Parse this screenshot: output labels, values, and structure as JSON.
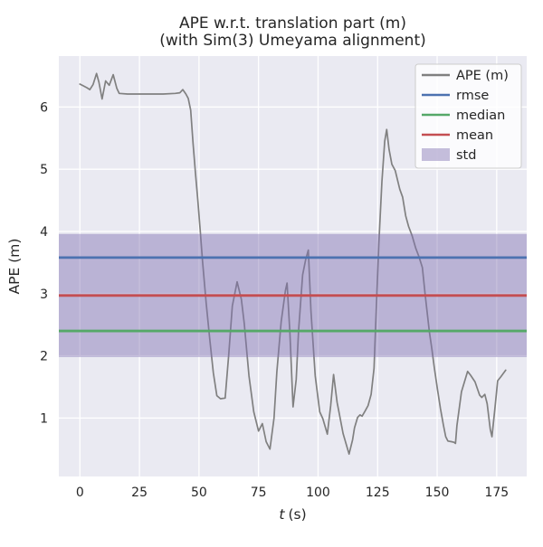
{
  "chart_data": {
    "type": "line",
    "title": "APE w.r.t. translation part (m)",
    "subtitle": "(with Sim(3) Umeyama alignment)",
    "xlabel": "t (s)",
    "xlabel_var": "t",
    "xlabel_unit": "(s)",
    "ylabel": "APE (m)",
    "xlim": [
      -8.85,
      187.6
    ],
    "ylim": [
      0.06,
      6.82
    ],
    "x_ticks": [
      0,
      25,
      50,
      75,
      100,
      125,
      150,
      175
    ],
    "y_ticks": [
      1,
      2,
      3,
      4,
      5,
      6
    ],
    "grid": true,
    "legend_position": "upper right",
    "stats": {
      "rmse": 3.58,
      "mean": 2.97,
      "median": 2.4,
      "std": 0.99,
      "std_band": [
        1.98,
        3.96
      ]
    },
    "series": [
      {
        "name": "APE (m)",
        "kind": "line",
        "color": "#808080",
        "width": 1.7,
        "points": [
          [
            0,
            6.37
          ],
          [
            1.5,
            6.34
          ],
          [
            3,
            6.31
          ],
          [
            4.2,
            6.28
          ],
          [
            5.5,
            6.36
          ],
          [
            7,
            6.54
          ],
          [
            8,
            6.4
          ],
          [
            9.3,
            6.13
          ],
          [
            10.8,
            6.42
          ],
          [
            12.3,
            6.35
          ],
          [
            14,
            6.52
          ],
          [
            15.5,
            6.3
          ],
          [
            16.5,
            6.22
          ],
          [
            20,
            6.21
          ],
          [
            25,
            6.21
          ],
          [
            30,
            6.21
          ],
          [
            35,
            6.21
          ],
          [
            40,
            6.22
          ],
          [
            42,
            6.23
          ],
          [
            43.2,
            6.28
          ],
          [
            44.5,
            6.21
          ],
          [
            45.5,
            6.14
          ],
          [
            46.5,
            5.95
          ],
          [
            47.5,
            5.42
          ],
          [
            48.5,
            4.95
          ],
          [
            49.5,
            4.5
          ],
          [
            50.5,
            4.02
          ],
          [
            51.5,
            3.52
          ],
          [
            53,
            2.85
          ],
          [
            54.5,
            2.28
          ],
          [
            56,
            1.73
          ],
          [
            57.5,
            1.36
          ],
          [
            59,
            1.31
          ],
          [
            61,
            1.32
          ],
          [
            62.5,
            2.03
          ],
          [
            64,
            2.8
          ],
          [
            66,
            3.19
          ],
          [
            67.8,
            2.91
          ],
          [
            69,
            2.52
          ],
          [
            71,
            1.68
          ],
          [
            73,
            1.1
          ],
          [
            75,
            0.79
          ],
          [
            76.6,
            0.91
          ],
          [
            78.2,
            0.62
          ],
          [
            79.8,
            0.5
          ],
          [
            81.5,
            1.0
          ],
          [
            82.7,
            1.74
          ],
          [
            84.5,
            2.55
          ],
          [
            86.3,
            3.05
          ],
          [
            87,
            3.17
          ],
          [
            88.2,
            2.35
          ],
          [
            89.5,
            1.18
          ],
          [
            90.8,
            1.62
          ],
          [
            91.8,
            2.4
          ],
          [
            93.5,
            3.3
          ],
          [
            94.8,
            3.55
          ],
          [
            95.9,
            3.7
          ],
          [
            97,
            2.72
          ],
          [
            98.8,
            1.68
          ],
          [
            100.7,
            1.1
          ],
          [
            102,
            0.99
          ],
          [
            103.9,
            0.74
          ],
          [
            105.3,
            1.2
          ],
          [
            106.5,
            1.7
          ],
          [
            108,
            1.25
          ],
          [
            108.9,
            1.07
          ],
          [
            110.5,
            0.75
          ],
          [
            113,
            0.42
          ],
          [
            114.5,
            0.65
          ],
          [
            115.3,
            0.84
          ],
          [
            116.6,
            1.01
          ],
          [
            117.6,
            1.05
          ],
          [
            118.5,
            1.03
          ],
          [
            119.7,
            1.11
          ],
          [
            121,
            1.2
          ],
          [
            122.3,
            1.38
          ],
          [
            123.5,
            1.8
          ],
          [
            124.5,
            2.8
          ],
          [
            125.5,
            3.8
          ],
          [
            126.8,
            4.8
          ],
          [
            128,
            5.45
          ],
          [
            128.8,
            5.64
          ],
          [
            129.8,
            5.32
          ],
          [
            131,
            5.08
          ],
          [
            132.4,
            4.98
          ],
          [
            134.3,
            4.68
          ],
          [
            135.5,
            4.55
          ],
          [
            136.8,
            4.25
          ],
          [
            138,
            4.08
          ],
          [
            139.5,
            3.93
          ],
          [
            141,
            3.73
          ],
          [
            142.3,
            3.6
          ],
          [
            143.8,
            3.42
          ],
          [
            145,
            2.97
          ],
          [
            146.7,
            2.39
          ],
          [
            147.8,
            2.1
          ],
          [
            148.8,
            1.81
          ],
          [
            150.1,
            1.47
          ],
          [
            151.4,
            1.15
          ],
          [
            152.6,
            0.89
          ],
          [
            153.6,
            0.7
          ],
          [
            154.5,
            0.63
          ],
          [
            156,
            0.62
          ],
          [
            157.1,
            0.61
          ],
          [
            157.7,
            0.59
          ],
          [
            158.3,
            0.88
          ],
          [
            160.2,
            1.42
          ],
          [
            162.8,
            1.75
          ],
          [
            164,
            1.69
          ],
          [
            165.9,
            1.58
          ],
          [
            167.8,
            1.37
          ],
          [
            168.7,
            1.33
          ],
          [
            170,
            1.38
          ],
          [
            171,
            1.23
          ],
          [
            172.3,
            0.82
          ],
          [
            173,
            0.7
          ],
          [
            174.2,
            1.13
          ],
          [
            175.4,
            1.6
          ],
          [
            176.7,
            1.66
          ],
          [
            178.8,
            1.77
          ]
        ]
      },
      {
        "name": "rmse",
        "kind": "hline",
        "color": "#4c72b0",
        "width": 2.8,
        "value": 3.58
      },
      {
        "name": "median",
        "kind": "hline",
        "color": "#55a868",
        "width": 2.8,
        "value": 2.4
      },
      {
        "name": "mean",
        "kind": "hline",
        "color": "#c44e52",
        "width": 2.8,
        "value": 2.97
      },
      {
        "name": "std",
        "kind": "band",
        "color": "#8172b2",
        "alpha": 0.45,
        "range": [
          1.98,
          3.96
        ]
      }
    ],
    "legend": [
      {
        "label": "APE (m)",
        "color": "#808080",
        "swatch": "line"
      },
      {
        "label": "rmse",
        "color": "#4c72b0",
        "swatch": "line"
      },
      {
        "label": "median",
        "color": "#55a868",
        "swatch": "line"
      },
      {
        "label": "mean",
        "color": "#c44e52",
        "swatch": "line"
      },
      {
        "label": "std",
        "color": "#8172b2",
        "swatch": "patch"
      }
    ],
    "colors": {
      "figure_bg": "#ffffff",
      "axes_bg": "#eaeaf2",
      "grid": "#ffffff",
      "text": "#262626",
      "legend_bg": "rgba(255,255,255,0.8)",
      "legend_border": "#cccccc"
    }
  }
}
